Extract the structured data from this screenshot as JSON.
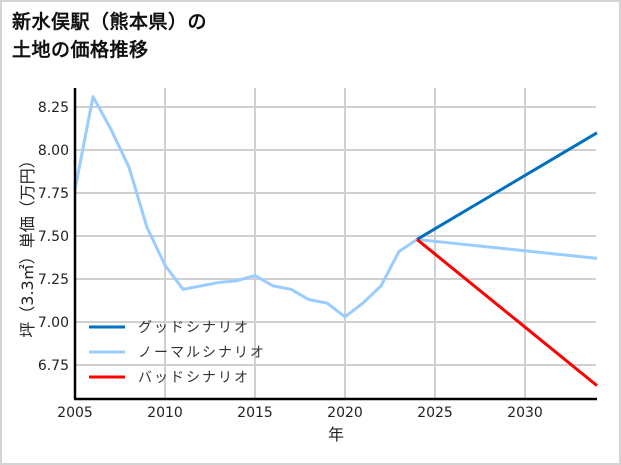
{
  "title": {
    "line1": "新水俣駅（熊本県）の",
    "line2": "土地の価格推移"
  },
  "chart_data": {
    "type": "line",
    "title": "新水俣駅（熊本県）の土地の価格推移",
    "xlabel": "年",
    "ylabel": "坪（3.3㎡）単価（万円）",
    "xlim": [
      2005,
      2034
    ],
    "ylim": [
      6.55,
      8.36
    ],
    "xticks": [
      2005,
      2010,
      2015,
      2020,
      2025,
      2030
    ],
    "yticks": [
      6.75,
      7.0,
      7.25,
      7.5,
      7.75,
      8.0,
      8.25
    ],
    "ytick_labels": [
      "6.75",
      "7.00",
      "7.25",
      "7.50",
      "7.75",
      "8.00",
      "8.25"
    ],
    "grid": true,
    "legend_position": "lower left",
    "series": [
      {
        "name": "グッドシナリオ",
        "color": "#0070C0",
        "x": [
          2024,
          2034
        ],
        "values": [
          7.48,
          8.1
        ]
      },
      {
        "name": "ノーマルシナリオ",
        "color": "#99CCFF",
        "x": [
          2005,
          2006,
          2007,
          2008,
          2009,
          2010,
          2011,
          2012,
          2013,
          2014,
          2015,
          2016,
          2017,
          2018,
          2019,
          2020,
          2021,
          2022,
          2023,
          2024,
          2034
        ],
        "values": [
          7.77,
          8.31,
          8.12,
          7.9,
          7.55,
          7.33,
          7.19,
          7.21,
          7.23,
          7.24,
          7.27,
          7.21,
          7.19,
          7.13,
          7.11,
          7.03,
          7.11,
          7.21,
          7.41,
          7.48,
          7.37
        ]
      },
      {
        "name": "バッドシナリオ",
        "color": "#FF0000",
        "x": [
          2024,
          2034
        ],
        "values": [
          7.48,
          6.63
        ]
      }
    ]
  },
  "colors": {
    "grid": "#d0d0d0",
    "axis": "#000000",
    "frame": "#d4d4d4"
  }
}
